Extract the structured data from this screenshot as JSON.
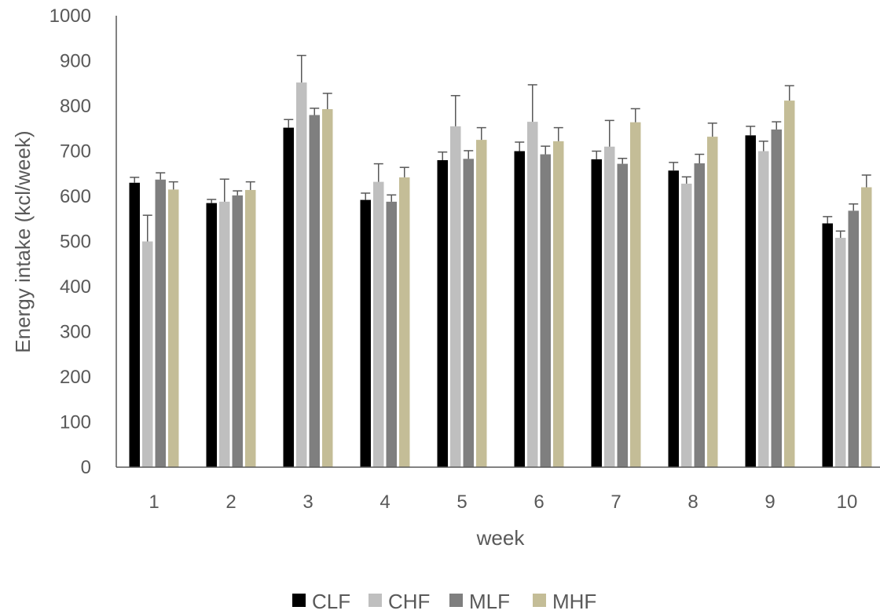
{
  "chart_data": {
    "type": "bar",
    "title": "",
    "xlabel": "week",
    "ylabel": "Energy intake (kcl/week)",
    "ylim": [
      0,
      1000
    ],
    "yticks": [
      0,
      100,
      200,
      300,
      400,
      500,
      600,
      700,
      800,
      900,
      1000
    ],
    "categories": [
      "1",
      "2",
      "3",
      "4",
      "5",
      "6",
      "7",
      "8",
      "9",
      "10"
    ],
    "grid": false,
    "legend_position": "bottom",
    "series": [
      {
        "name": "CLF",
        "color": "#000000",
        "values": [
          630,
          585,
          752,
          592,
          680,
          700,
          682,
          657,
          735,
          540
        ],
        "errors": [
          12,
          8,
          18,
          15,
          18,
          20,
          18,
          18,
          20,
          15
        ]
      },
      {
        "name": "CHF",
        "color": "#bfbfbf",
        "values": [
          500,
          588,
          852,
          632,
          755,
          765,
          710,
          628,
          700,
          508
        ],
        "errors": [
          58,
          50,
          60,
          40,
          68,
          82,
          58,
          15,
          22,
          15
        ]
      },
      {
        "name": "MLF",
        "color": "#7f7f7f",
        "values": [
          637,
          602,
          780,
          588,
          683,
          693,
          672,
          673,
          748,
          568
        ],
        "errors": [
          15,
          10,
          15,
          15,
          18,
          18,
          12,
          20,
          17,
          15
        ]
      },
      {
        "name": "MHF",
        "color": "#c4bd97",
        "values": [
          615,
          614,
          793,
          642,
          725,
          722,
          764,
          732,
          812,
          620
        ],
        "errors": [
          17,
          18,
          35,
          22,
          27,
          30,
          30,
          30,
          33,
          27
        ]
      }
    ]
  }
}
